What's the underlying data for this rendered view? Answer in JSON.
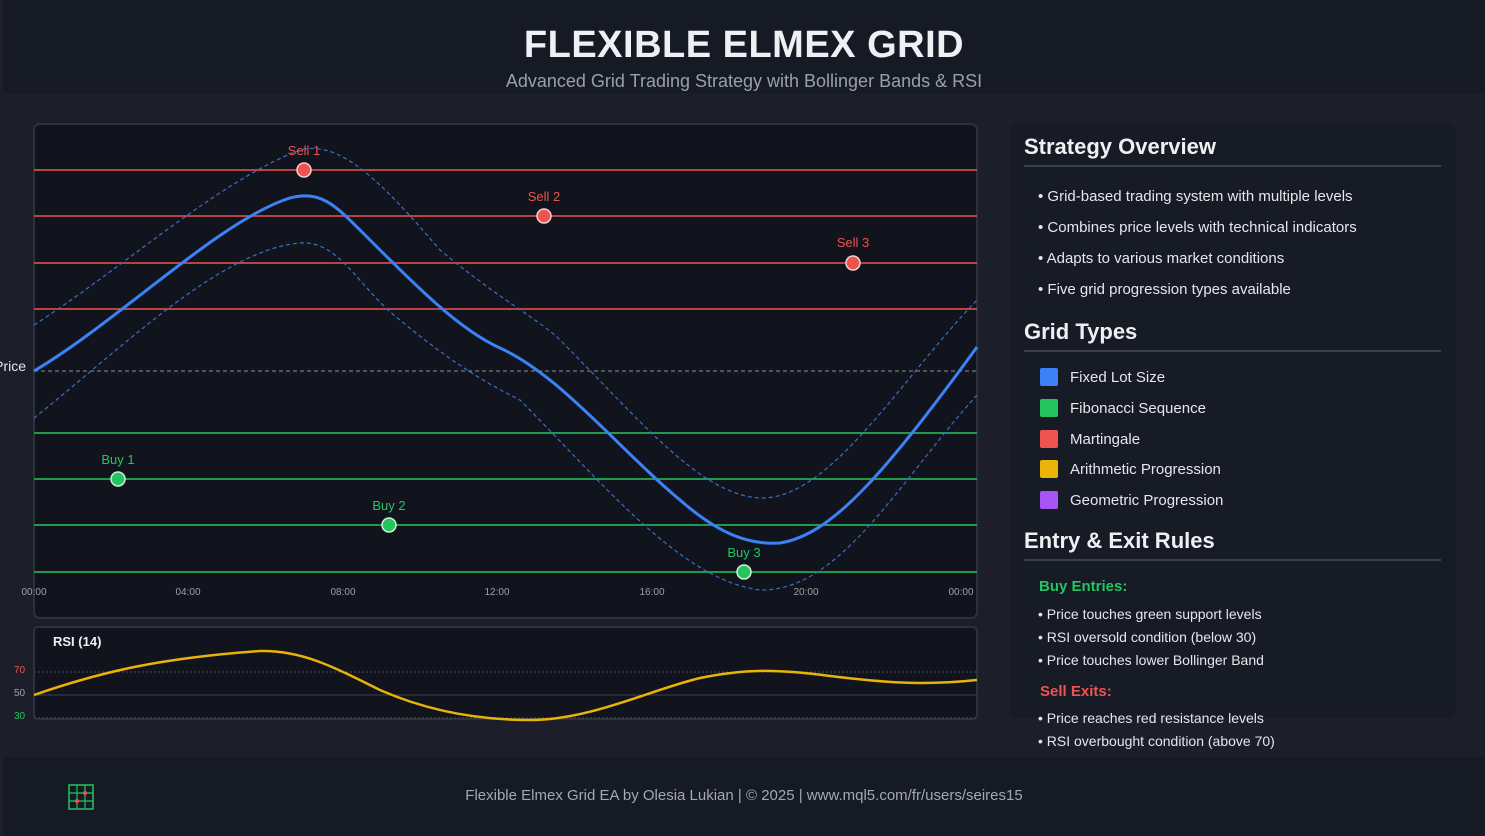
{
  "header": {
    "title": "FLEXIBLE ELMEX GRID",
    "subtitle": "Advanced Grid Trading Strategy with Bollinger Bands & RSI"
  },
  "chart": {
    "price_label": "Price",
    "sell_markers": [
      "Sell 1",
      "Sell 2",
      "Sell 3"
    ],
    "buy_markers": [
      "Buy 1",
      "Buy 2",
      "Buy 3"
    ],
    "time_labels": [
      "00:00",
      "04:00",
      "08:00",
      "12:00",
      "16:00",
      "20:00",
      "00:00"
    ],
    "colors": {
      "price": "#3b82f6",
      "sell": "#ef5350",
      "buy": "#22c55e",
      "bands": "#3b82f6"
    }
  },
  "rsi": {
    "title": "RSI (14)",
    "levels": [
      "70",
      "50",
      "30"
    ],
    "color": "#eab308"
  },
  "overview": {
    "title": "Strategy Overview",
    "items": [
      "• Grid-based trading system with multiple levels",
      "• Combines price levels with technical indicators",
      "• Adapts to various market conditions",
      "• Five grid progression types available"
    ]
  },
  "grid_types": {
    "title": "Grid Types",
    "items": [
      {
        "label": "Fixed Lot Size",
        "color": "#3b82f6"
      },
      {
        "label": "Fibonacci Sequence",
        "color": "#22c55e"
      },
      {
        "label": "Martingale",
        "color": "#ef5350"
      },
      {
        "label": "Arithmetic Progression",
        "color": "#eab308"
      },
      {
        "label": "Geometric Progression",
        "color": "#a855f7"
      }
    ]
  },
  "rules": {
    "title": "Entry & Exit Rules",
    "buy_title": "Buy Entries:",
    "buy_items": [
      "• Price touches green support levels",
      "• RSI oversold condition (below 30)",
      "• Price touches lower Bollinger Band"
    ],
    "sell_title": "Sell Exits:",
    "sell_items": [
      "• Price reaches red resistance levels",
      "• RSI overbought condition (above 70)"
    ]
  },
  "footer": {
    "text": "Flexible Elmex Grid EA by Olesia Lukian | © 2025 | www.mql5.com/fr/users/seires15",
    "logo_icon": "grid-icon"
  }
}
